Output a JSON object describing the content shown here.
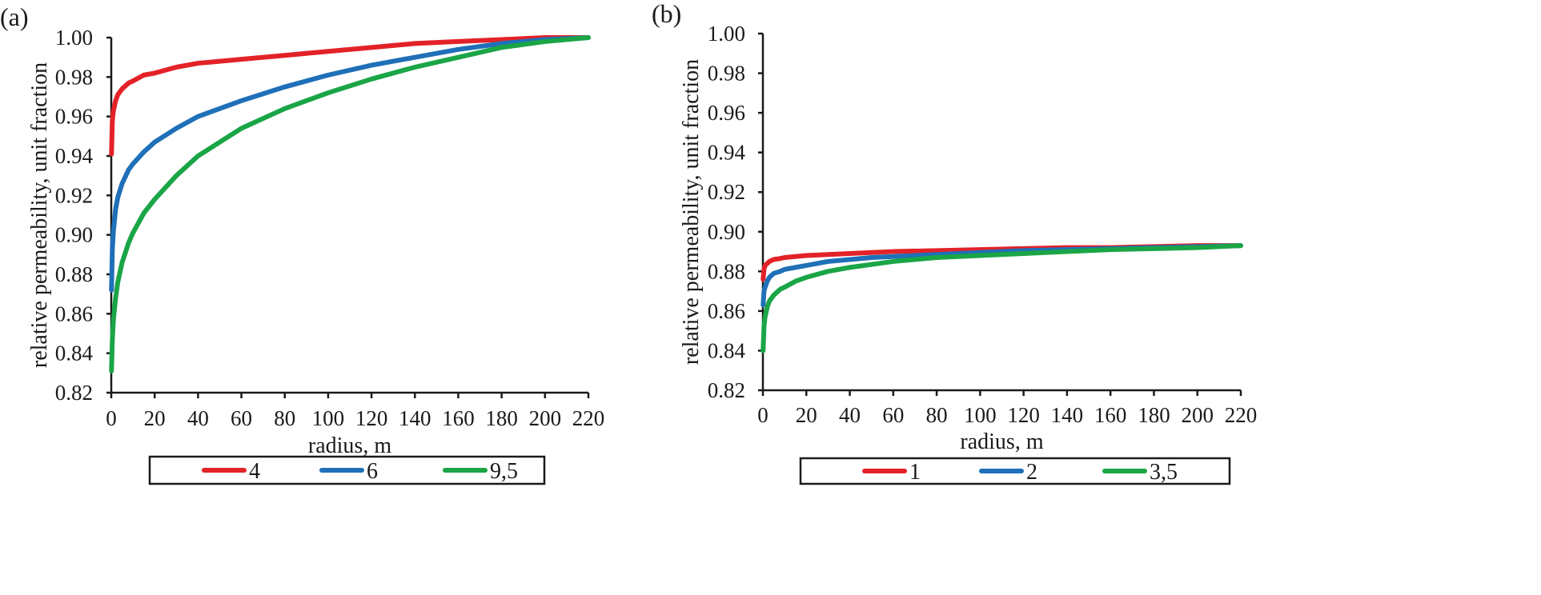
{
  "chart_data": [
    {
      "type": "line",
      "panel_label": "(a)",
      "xlabel": "radius, m",
      "ylabel": "relative permeability, unit fraction",
      "xlim": [
        0,
        220
      ],
      "ylim": [
        0.82,
        1.0
      ],
      "x_ticks": [
        "0",
        "20",
        "40",
        "60",
        "80",
        "100",
        "120",
        "140",
        "160",
        "180",
        "200",
        "220"
      ],
      "y_ticks": [
        "0.82",
        "0.84",
        "0.86",
        "0.88",
        "0.90",
        "0.92",
        "0.94",
        "0.96",
        "0.98",
        "1.00"
      ],
      "legend_position": "bottom",
      "series": [
        {
          "name": "4",
          "color": "#e32228",
          "x": [
            0.1,
            0.5,
            1,
            2,
            3,
            5,
            8,
            10,
            15,
            20,
            30,
            40,
            50,
            60,
            80,
            100,
            120,
            140,
            160,
            180,
            200,
            220
          ],
          "y": [
            0.941,
            0.958,
            0.963,
            0.968,
            0.971,
            0.974,
            0.977,
            0.978,
            0.981,
            0.982,
            0.985,
            0.987,
            0.988,
            0.989,
            0.991,
            0.993,
            0.995,
            0.997,
            0.998,
            0.999,
            1.0,
            1.0
          ]
        },
        {
          "name": "6",
          "color": "#1f70b8",
          "x": [
            0.1,
            0.5,
            1,
            2,
            3,
            5,
            8,
            10,
            15,
            20,
            30,
            40,
            50,
            60,
            80,
            100,
            120,
            140,
            160,
            180,
            200,
            220
          ],
          "y": [
            0.872,
            0.893,
            0.902,
            0.913,
            0.919,
            0.926,
            0.933,
            0.936,
            0.942,
            0.947,
            0.954,
            0.96,
            0.964,
            0.968,
            0.975,
            0.981,
            0.986,
            0.99,
            0.994,
            0.997,
            0.999,
            1.0
          ]
        },
        {
          "name": "9,5",
          "color": "#1aa546",
          "x": [
            0.1,
            0.5,
            1,
            2,
            3,
            5,
            8,
            10,
            15,
            20,
            30,
            40,
            50,
            60,
            80,
            100,
            120,
            140,
            160,
            180,
            200,
            220
          ],
          "y": [
            0.831,
            0.847,
            0.857,
            0.868,
            0.876,
            0.886,
            0.896,
            0.901,
            0.911,
            0.918,
            0.93,
            0.94,
            0.947,
            0.954,
            0.964,
            0.972,
            0.979,
            0.985,
            0.99,
            0.995,
            0.998,
            1.0
          ]
        }
      ]
    },
    {
      "type": "line",
      "panel_label": "(b)",
      "xlabel": "radius, m",
      "ylabel": "relative permeability, unit fraction",
      "xlim": [
        0,
        220
      ],
      "ylim": [
        0.82,
        1.0
      ],
      "x_ticks": [
        "0",
        "20",
        "40",
        "60",
        "80",
        "100",
        "120",
        "140",
        "160",
        "180",
        "200",
        "220"
      ],
      "y_ticks": [
        "0.82",
        "0.84",
        "0.86",
        "0.88",
        "0.90",
        "0.92",
        "0.94",
        "0.96",
        "0.98",
        "1.00"
      ],
      "legend_position": "bottom",
      "series": [
        {
          "name": "1",
          "color": "#e32228",
          "x": [
            0.1,
            0.5,
            1,
            2,
            3,
            5,
            8,
            10,
            15,
            20,
            30,
            40,
            50,
            60,
            80,
            100,
            120,
            140,
            160,
            180,
            200,
            220
          ],
          "y": [
            0.876,
            0.881,
            0.883,
            0.884,
            0.885,
            0.886,
            0.8865,
            0.887,
            0.8875,
            0.888,
            0.8885,
            0.889,
            0.8895,
            0.89,
            0.8905,
            0.891,
            0.8915,
            0.892,
            0.892,
            0.8925,
            0.893,
            0.893
          ]
        },
        {
          "name": "2",
          "color": "#1f70b8",
          "x": [
            0.1,
            0.5,
            1,
            2,
            3,
            5,
            8,
            10,
            15,
            20,
            30,
            40,
            50,
            60,
            80,
            100,
            120,
            140,
            160,
            180,
            200,
            220
          ],
          "y": [
            0.863,
            0.87,
            0.872,
            0.875,
            0.877,
            0.879,
            0.88,
            0.881,
            0.882,
            0.883,
            0.885,
            0.886,
            0.887,
            0.8875,
            0.8885,
            0.8895,
            0.8905,
            0.891,
            0.8915,
            0.892,
            0.8925,
            0.893
          ]
        },
        {
          "name": "3,5",
          "color": "#1aa546",
          "x": [
            0.1,
            0.5,
            1,
            2,
            3,
            5,
            8,
            10,
            15,
            20,
            30,
            40,
            50,
            60,
            80,
            100,
            120,
            140,
            160,
            180,
            200,
            220
          ],
          "y": [
            0.84,
            0.852,
            0.857,
            0.862,
            0.865,
            0.868,
            0.871,
            0.872,
            0.875,
            0.877,
            0.88,
            0.882,
            0.8835,
            0.885,
            0.887,
            0.888,
            0.889,
            0.89,
            0.891,
            0.8915,
            0.892,
            0.893
          ]
        }
      ]
    }
  ]
}
